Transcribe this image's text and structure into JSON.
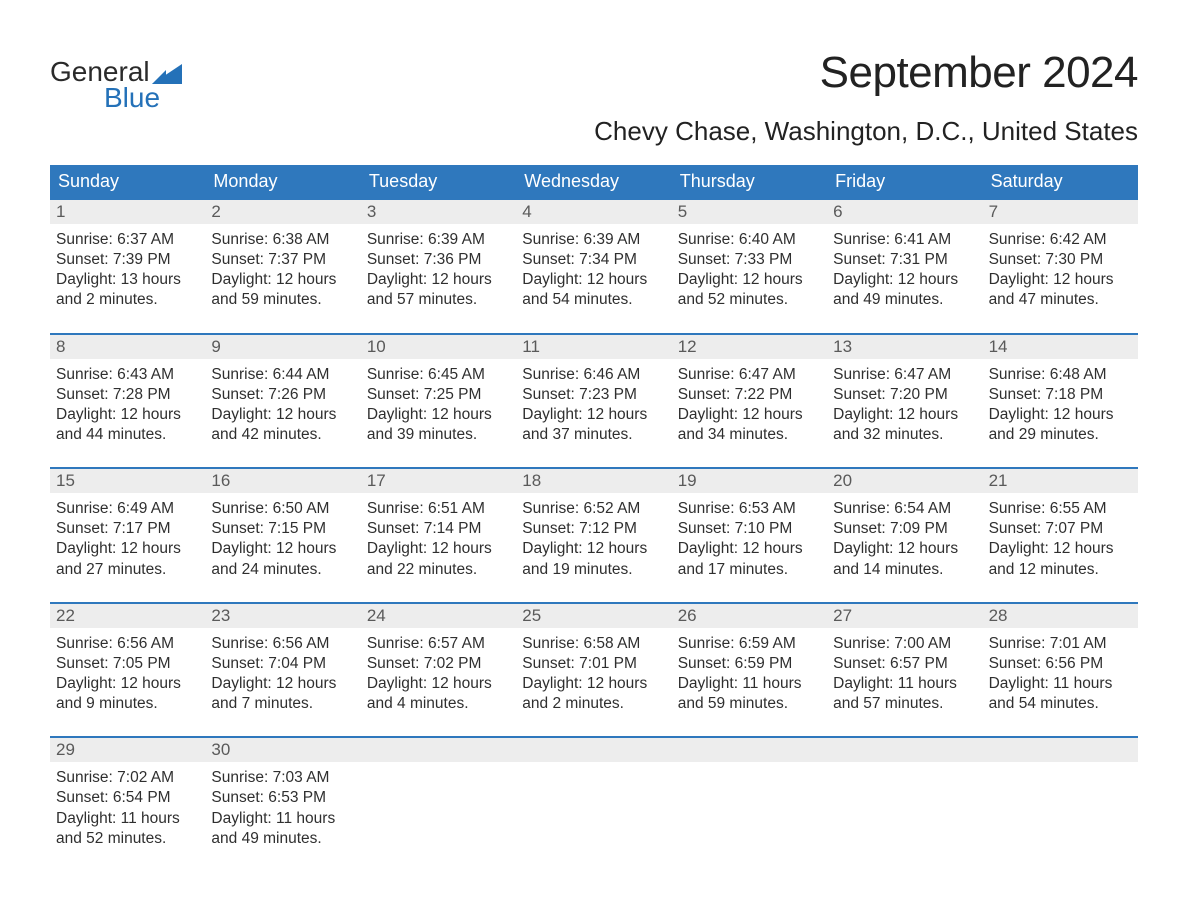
{
  "logo": {
    "word1": "General",
    "word2": "Blue"
  },
  "title": "September 2024",
  "location": "Chevy Chase, Washington, D.C., United States",
  "colors": {
    "header_bg": "#2f78bd",
    "header_text": "#ffffff",
    "row_accent": "#2f78bd",
    "daynum_bg": "#ededed",
    "daynum_text": "#5a5a5a",
    "body_text": "#2f2f2f",
    "logo_blue": "#2471b8",
    "page_bg": "#ffffff"
  },
  "weekdays": [
    "Sunday",
    "Monday",
    "Tuesday",
    "Wednesday",
    "Thursday",
    "Friday",
    "Saturday"
  ],
  "weeks": [
    [
      {
        "n": "1",
        "sr": "Sunrise: 6:37 AM",
        "ss": "Sunset: 7:39 PM",
        "d1": "Daylight: 13 hours",
        "d2": "and 2 minutes."
      },
      {
        "n": "2",
        "sr": "Sunrise: 6:38 AM",
        "ss": "Sunset: 7:37 PM",
        "d1": "Daylight: 12 hours",
        "d2": "and 59 minutes."
      },
      {
        "n": "3",
        "sr": "Sunrise: 6:39 AM",
        "ss": "Sunset: 7:36 PM",
        "d1": "Daylight: 12 hours",
        "d2": "and 57 minutes."
      },
      {
        "n": "4",
        "sr": "Sunrise: 6:39 AM",
        "ss": "Sunset: 7:34 PM",
        "d1": "Daylight: 12 hours",
        "d2": "and 54 minutes."
      },
      {
        "n": "5",
        "sr": "Sunrise: 6:40 AM",
        "ss": "Sunset: 7:33 PM",
        "d1": "Daylight: 12 hours",
        "d2": "and 52 minutes."
      },
      {
        "n": "6",
        "sr": "Sunrise: 6:41 AM",
        "ss": "Sunset: 7:31 PM",
        "d1": "Daylight: 12 hours",
        "d2": "and 49 minutes."
      },
      {
        "n": "7",
        "sr": "Sunrise: 6:42 AM",
        "ss": "Sunset: 7:30 PM",
        "d1": "Daylight: 12 hours",
        "d2": "and 47 minutes."
      }
    ],
    [
      {
        "n": "8",
        "sr": "Sunrise: 6:43 AM",
        "ss": "Sunset: 7:28 PM",
        "d1": "Daylight: 12 hours",
        "d2": "and 44 minutes."
      },
      {
        "n": "9",
        "sr": "Sunrise: 6:44 AM",
        "ss": "Sunset: 7:26 PM",
        "d1": "Daylight: 12 hours",
        "d2": "and 42 minutes."
      },
      {
        "n": "10",
        "sr": "Sunrise: 6:45 AM",
        "ss": "Sunset: 7:25 PM",
        "d1": "Daylight: 12 hours",
        "d2": "and 39 minutes."
      },
      {
        "n": "11",
        "sr": "Sunrise: 6:46 AM",
        "ss": "Sunset: 7:23 PM",
        "d1": "Daylight: 12 hours",
        "d2": "and 37 minutes."
      },
      {
        "n": "12",
        "sr": "Sunrise: 6:47 AM",
        "ss": "Sunset: 7:22 PM",
        "d1": "Daylight: 12 hours",
        "d2": "and 34 minutes."
      },
      {
        "n": "13",
        "sr": "Sunrise: 6:47 AM",
        "ss": "Sunset: 7:20 PM",
        "d1": "Daylight: 12 hours",
        "d2": "and 32 minutes."
      },
      {
        "n": "14",
        "sr": "Sunrise: 6:48 AM",
        "ss": "Sunset: 7:18 PM",
        "d1": "Daylight: 12 hours",
        "d2": "and 29 minutes."
      }
    ],
    [
      {
        "n": "15",
        "sr": "Sunrise: 6:49 AM",
        "ss": "Sunset: 7:17 PM",
        "d1": "Daylight: 12 hours",
        "d2": "and 27 minutes."
      },
      {
        "n": "16",
        "sr": "Sunrise: 6:50 AM",
        "ss": "Sunset: 7:15 PM",
        "d1": "Daylight: 12 hours",
        "d2": "and 24 minutes."
      },
      {
        "n": "17",
        "sr": "Sunrise: 6:51 AM",
        "ss": "Sunset: 7:14 PM",
        "d1": "Daylight: 12 hours",
        "d2": "and 22 minutes."
      },
      {
        "n": "18",
        "sr": "Sunrise: 6:52 AM",
        "ss": "Sunset: 7:12 PM",
        "d1": "Daylight: 12 hours",
        "d2": "and 19 minutes."
      },
      {
        "n": "19",
        "sr": "Sunrise: 6:53 AM",
        "ss": "Sunset: 7:10 PM",
        "d1": "Daylight: 12 hours",
        "d2": "and 17 minutes."
      },
      {
        "n": "20",
        "sr": "Sunrise: 6:54 AM",
        "ss": "Sunset: 7:09 PM",
        "d1": "Daylight: 12 hours",
        "d2": "and 14 minutes."
      },
      {
        "n": "21",
        "sr": "Sunrise: 6:55 AM",
        "ss": "Sunset: 7:07 PM",
        "d1": "Daylight: 12 hours",
        "d2": "and 12 minutes."
      }
    ],
    [
      {
        "n": "22",
        "sr": "Sunrise: 6:56 AM",
        "ss": "Sunset: 7:05 PM",
        "d1": "Daylight: 12 hours",
        "d2": "and 9 minutes."
      },
      {
        "n": "23",
        "sr": "Sunrise: 6:56 AM",
        "ss": "Sunset: 7:04 PM",
        "d1": "Daylight: 12 hours",
        "d2": "and 7 minutes."
      },
      {
        "n": "24",
        "sr": "Sunrise: 6:57 AM",
        "ss": "Sunset: 7:02 PM",
        "d1": "Daylight: 12 hours",
        "d2": "and 4 minutes."
      },
      {
        "n": "25",
        "sr": "Sunrise: 6:58 AM",
        "ss": "Sunset: 7:01 PM",
        "d1": "Daylight: 12 hours",
        "d2": "and 2 minutes."
      },
      {
        "n": "26",
        "sr": "Sunrise: 6:59 AM",
        "ss": "Sunset: 6:59 PM",
        "d1": "Daylight: 11 hours",
        "d2": "and 59 minutes."
      },
      {
        "n": "27",
        "sr": "Sunrise: 7:00 AM",
        "ss": "Sunset: 6:57 PM",
        "d1": "Daylight: 11 hours",
        "d2": "and 57 minutes."
      },
      {
        "n": "28",
        "sr": "Sunrise: 7:01 AM",
        "ss": "Sunset: 6:56 PM",
        "d1": "Daylight: 11 hours",
        "d2": "and 54 minutes."
      }
    ],
    [
      {
        "n": "29",
        "sr": "Sunrise: 7:02 AM",
        "ss": "Sunset: 6:54 PM",
        "d1": "Daylight: 11 hours",
        "d2": "and 52 minutes."
      },
      {
        "n": "30",
        "sr": "Sunrise: 7:03 AM",
        "ss": "Sunset: 6:53 PM",
        "d1": "Daylight: 11 hours",
        "d2": "and 49 minutes."
      },
      {
        "empty": true
      },
      {
        "empty": true
      },
      {
        "empty": true
      },
      {
        "empty": true
      },
      {
        "empty": true
      }
    ]
  ]
}
